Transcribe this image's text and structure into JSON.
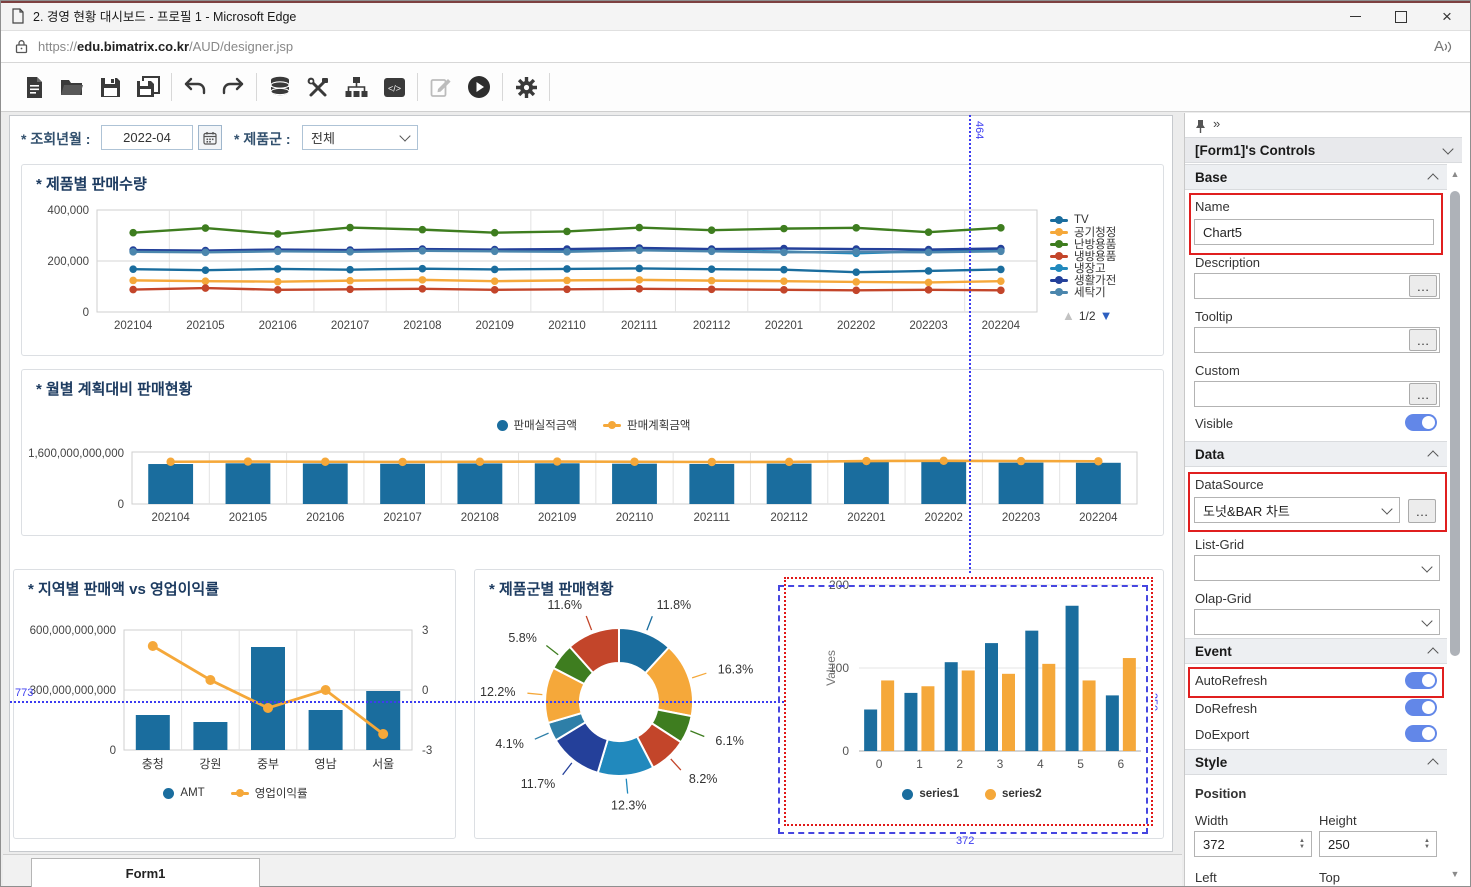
{
  "window": {
    "title": "2. 경영 현황 대시보드 - 프로필 1 - Microsoft Edge"
  },
  "browser": {
    "url_prefix": "https://",
    "url_domain": "edu.bimatrix.co.kr",
    "url_path": "/AUD/designer.jsp",
    "read_aloud": "A"
  },
  "toolbar": {
    "icons": [
      "new-file",
      "open-folder",
      "save",
      "save-all",
      "undo",
      "redo",
      "datasource",
      "build-tools",
      "hierarchy",
      "script-editor",
      "edit",
      "run",
      "settings"
    ]
  },
  "filters": {
    "date_label": "* 조회년월 :",
    "date_value": "2022-04",
    "product_label": "* 제품군 :",
    "product_value": "전체"
  },
  "guides": {
    "vertical": "464",
    "horizontal": "773",
    "sel_width": "372",
    "sel_height": "250"
  },
  "colors": {
    "blue": "#1a6d9e",
    "orange": "#f5a83a",
    "green": "#3e7d1f",
    "red": "#c3452a",
    "lightblue": "#2189bd",
    "navy": "#24409a",
    "steelblue": "#4b86ad",
    "guide": "#3c3cf0",
    "selection": "#e01818",
    "highlight": "#e01f1f",
    "toggle": "#6287e8"
  },
  "chart_data": [
    {
      "type": "line",
      "title": "* 제품별 판매수량",
      "categories": [
        "202104",
        "202105",
        "202106",
        "202107",
        "202108",
        "202109",
        "202110",
        "202111",
        "202112",
        "202201",
        "202202",
        "202203",
        "202204"
      ],
      "series": [
        {
          "name": "TV",
          "color": "#1a6d9e",
          "values": [
            168000,
            164000,
            169000,
            166000,
            170000,
            167000,
            169000,
            171000,
            168000,
            166000,
            156000,
            161000,
            167000
          ]
        },
        {
          "name": "공기청정",
          "color": "#f5a83a",
          "values": [
            124000,
            121000,
            119000,
            123000,
            126000,
            121000,
            124000,
            126000,
            123000,
            121000,
            118000,
            116000,
            121000
          ]
        },
        {
          "name": "난방용품",
          "color": "#3e7d1f",
          "values": [
            311000,
            329000,
            306000,
            331000,
            323000,
            311000,
            316000,
            331000,
            321000,
            327000,
            330000,
            313000,
            330000
          ]
        },
        {
          "name": "냉방용품",
          "color": "#c3452a",
          "values": [
            88000,
            94000,
            87000,
            89000,
            91000,
            87000,
            89000,
            91000,
            89000,
            87000,
            85000,
            87000,
            85000
          ]
        },
        {
          "name": "냉장고",
          "color": "#2189bd",
          "values": [
            239000,
            237000,
            241000,
            239000,
            243000,
            241000,
            239000,
            245000,
            241000,
            237000,
            230000,
            239000,
            241000
          ]
        },
        {
          "name": "생활가전",
          "color": "#24409a",
          "values": [
            243000,
            241000,
            245000,
            243000,
            247000,
            245000,
            247000,
            251000,
            247000,
            249000,
            247000,
            245000,
            249000
          ]
        },
        {
          "name": "세탁기",
          "color": "#4b86ad",
          "values": [
            236000,
            234000,
            238000,
            236000,
            240000,
            238000,
            236000,
            242000,
            238000,
            234000,
            236000,
            234000,
            238000
          ]
        }
      ],
      "ylim": [
        0,
        400000
      ],
      "yticks": [
        "400,000",
        "200,000",
        "0"
      ],
      "legend_page": "1/2",
      "legend_position": "right"
    },
    {
      "type": "bar+line",
      "title": "* 월별 계획대비 판매현황",
      "categories": [
        "202104",
        "202105",
        "202106",
        "202107",
        "202108",
        "202109",
        "202110",
        "202111",
        "202112",
        "202201",
        "202202",
        "202203",
        "202204"
      ],
      "series": [
        {
          "name": "판매실적금액",
          "type": "bar",
          "color": "#1a6d9e",
          "values": [
            1230000000000,
            1252000000000,
            1246000000000,
            1238000000000,
            1248000000000,
            1252000000000,
            1240000000000,
            1232000000000,
            1242000000000,
            1295000000000,
            1300000000000,
            1272000000000,
            1268000000000
          ]
        },
        {
          "name": "판매계획금액",
          "type": "line",
          "color": "#f5a83a",
          "values": [
            1300000000000,
            1306000000000,
            1300000000000,
            1295000000000,
            1300000000000,
            1306000000000,
            1300000000000,
            1292000000000,
            1296000000000,
            1322000000000,
            1328000000000,
            1320000000000,
            1315000000000
          ]
        }
      ],
      "ylim": [
        0,
        1600000000000
      ],
      "yticks": [
        "1,600,000,000,000",
        "0"
      ],
      "legend_position": "top-center"
    },
    {
      "type": "bar+line dual-axis",
      "title": "* 지역별 판매액 vs 영업이익률",
      "categories": [
        "충청",
        "강원",
        "중부",
        "영남",
        "서울"
      ],
      "series": [
        {
          "name": "AMT",
          "type": "bar",
          "color": "#1a6d9e",
          "axis": "left",
          "values": [
            175000000000,
            140000000000,
            515000000000,
            200000000000,
            295000000000
          ]
        },
        {
          "name": "영업이익률",
          "type": "line",
          "color": "#f5a83a",
          "axis": "right",
          "values": [
            2.2,
            0.5,
            -0.9,
            0,
            -2.2
          ]
        }
      ],
      "ylim_left": [
        0,
        600000000000
      ],
      "yticks_left": [
        "600,000,000,000",
        "300,000,000,000",
        "0"
      ],
      "ylim_right": [
        -3,
        3
      ],
      "yticks_right": [
        "3",
        "0",
        "-3"
      ],
      "legend_position": "bottom-center"
    },
    {
      "type": "donut",
      "title": "* 제품군별 판매현황",
      "slices": [
        {
          "label": "11.8%",
          "value": 11.8,
          "color": "#1a6d9e"
        },
        {
          "label": "16.3%",
          "value": 16.3,
          "color": "#f5a83a"
        },
        {
          "label": "6.1%",
          "value": 6.1,
          "color": "#3e7d1f"
        },
        {
          "label": "8.2%",
          "value": 8.2,
          "color": "#c3452a"
        },
        {
          "label": "12.3%",
          "value": 12.3,
          "color": "#2189bd"
        },
        {
          "label": "11.7%",
          "value": 11.7,
          "color": "#24409a"
        },
        {
          "label": "4.1%",
          "value": 4.1,
          "color": "#2e7fa8"
        },
        {
          "label": "12.2%",
          "value": 12.2,
          "color": "#f5a83a"
        },
        {
          "label": "5.8%",
          "value": 5.8,
          "color": "#3e7d1f"
        },
        {
          "label": "11.6%",
          "value": 11.6,
          "color": "#c3452a"
        }
      ]
    },
    {
      "type": "bar",
      "title": "",
      "categories": [
        "0",
        "1",
        "2",
        "3",
        "4",
        "5",
        "6"
      ],
      "series": [
        {
          "name": "series1",
          "color": "#1a6d9e",
          "values": [
            50,
            70,
            107,
            130,
            145,
            175,
            67
          ]
        },
        {
          "name": "series2",
          "color": "#f5a83a",
          "values": [
            85,
            78,
            97,
            93,
            105,
            85,
            112
          ]
        }
      ],
      "ylim": [
        0,
        200
      ],
      "yticks": [
        "200",
        "100",
        "0"
      ],
      "ylabel": "Values",
      "legend_position": "bottom-center"
    }
  ],
  "panel": {
    "header": "[Form1]'s Controls",
    "ellipsis": "…",
    "base": {
      "title": "Base",
      "name_label": "Name",
      "name_value": "Chart5",
      "description_label": "Description",
      "tooltip_label": "Tooltip",
      "custom_label": "Custom",
      "visible_label": "Visible"
    },
    "data": {
      "title": "Data",
      "datasource_label": "DataSource",
      "datasource_value": "도넛&BAR 차트",
      "listgrid_label": "List-Grid",
      "olapgrid_label": "Olap-Grid"
    },
    "event": {
      "title": "Event",
      "autorefresh_label": "AutoRefresh",
      "dorefresh_label": "DoRefresh",
      "doexport_label": "DoExport"
    },
    "style": {
      "title": "Style",
      "position_label": "Position",
      "width_label": "Width",
      "width_value": "372",
      "height_label": "Height",
      "height_value": "250",
      "left_label": "Left",
      "top_label": "Top"
    }
  },
  "footer": {
    "tab": "Form1"
  }
}
